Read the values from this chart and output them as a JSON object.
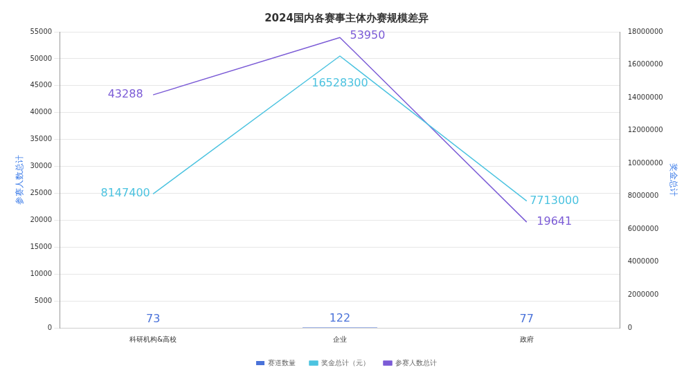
{
  "chart_data": {
    "type": "bar",
    "title": "2024国内各赛事主体办赛规模差异",
    "categories": [
      "科研机构&高校",
      "企业",
      "政府"
    ],
    "series": [
      {
        "name": "赛道数量",
        "color": "#4a72d9",
        "values": [
          73,
          122,
          77
        ]
      },
      {
        "name": "奖金总计（元）",
        "type": "line",
        "axis": "y2",
        "color": "#4cc3e0",
        "values": [
          8147400,
          16528300,
          7713000
        ]
      },
      {
        "name": "参赛人数总计",
        "type": "line",
        "color": "#7b5bd6",
        "values": [
          43288,
          53950,
          19641
        ]
      }
    ],
    "ylabel": "参赛人数总计",
    "y2label": "奖金总计",
    "ylim": [
      0,
      55000
    ],
    "yticks": [
      0,
      5000,
      10000,
      15000,
      20000,
      25000,
      30000,
      35000,
      40000,
      45000,
      50000,
      55000
    ],
    "y2lim": [
      0,
      18000000
    ],
    "y2ticks": [
      0,
      2000000,
      4000000,
      6000000,
      8000000,
      10000000,
      12000000,
      14000000,
      16000000,
      18000000
    ],
    "grid": "y",
    "legend": "bottom",
    "data_labels": true,
    "marker": "none"
  }
}
